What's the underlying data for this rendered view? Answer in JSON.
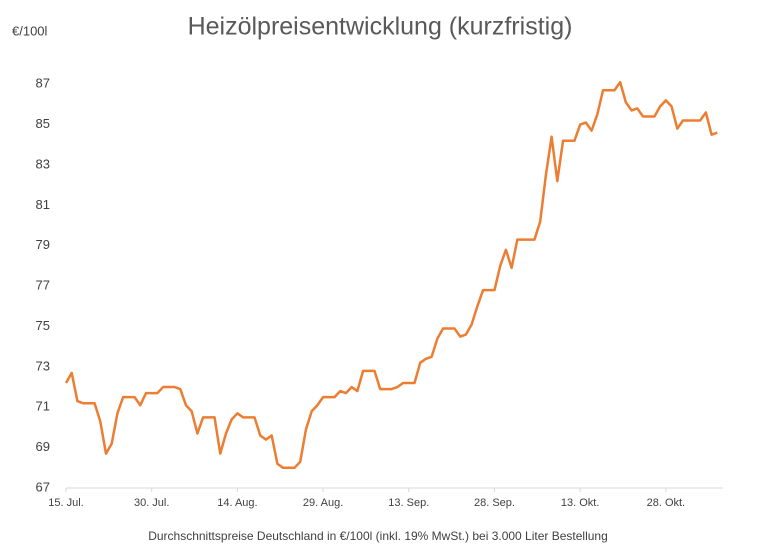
{
  "chart_data": {
    "type": "line",
    "title": "Heizölpreisentwicklung (kurzfristig)",
    "y_axis_label": "€/100l",
    "x_axis_label": "Durchschnittspreise Deutschland in €/100l (inkl. 19% MwSt.) bei 3.000 Liter Bestellung",
    "x": [
      0,
      1,
      2,
      3,
      5,
      6,
      7,
      8,
      9,
      10,
      12,
      13,
      14,
      16,
      17,
      19,
      20,
      21,
      22,
      23,
      24,
      26,
      27,
      28,
      29,
      30,
      31,
      33,
      34,
      35,
      36,
      37,
      38,
      40,
      41,
      42,
      43,
      44,
      45,
      47,
      48,
      49,
      50,
      51,
      52,
      54,
      55,
      57,
      58,
      59,
      61,
      62,
      63,
      64,
      65,
      66,
      68,
      69,
      70,
      71,
      72,
      73,
      75,
      76,
      77,
      78,
      79,
      82,
      83,
      84,
      85,
      86,
      87,
      89,
      90,
      91,
      92,
      93,
      94,
      96,
      97,
      98,
      99,
      100,
      101,
      103,
      104,
      105,
      106,
      107,
      108,
      111,
      112,
      113,
      114
    ],
    "series": [
      {
        "name": "Heizölpreis",
        "color": "#ed7d31",
        "values": [
          72.2,
          72.7,
          71.3,
          71.2,
          71.2,
          70.3,
          68.7,
          69.2,
          70.7,
          71.5,
          71.5,
          71.1,
          71.7,
          71.7,
          72.0,
          72.0,
          71.9,
          71.1,
          70.8,
          69.7,
          70.5,
          70.5,
          68.7,
          69.7,
          70.4,
          70.7,
          70.5,
          70.5,
          69.6,
          69.4,
          69.6,
          68.2,
          68.0,
          68.0,
          68.3,
          69.9,
          70.8,
          71.1,
          71.5,
          71.5,
          71.8,
          71.7,
          72.0,
          71.8,
          72.8,
          72.8,
          71.9,
          71.9,
          72.0,
          72.2,
          72.2,
          73.2,
          73.4,
          73.5,
          74.4,
          74.9,
          74.9,
          74.5,
          74.6,
          75.1,
          76.0,
          76.8,
          76.8,
          78.0,
          78.8,
          77.9,
          79.3,
          79.3,
          80.2,
          82.5,
          84.4,
          82.2,
          84.2,
          84.2,
          85.0,
          85.1,
          84.7,
          85.5,
          86.7,
          86.7,
          87.1,
          86.1,
          85.7,
          85.8,
          85.4,
          85.4,
          85.9,
          86.2,
          85.9,
          84.8,
          85.2,
          85.2,
          85.6,
          84.5,
          84.6
        ]
      }
    ],
    "xlim": [
      0,
      115
    ],
    "xticks": [
      {
        "value": 0,
        "label": "15. Jul."
      },
      {
        "value": 15,
        "label": "30. Jul."
      },
      {
        "value": 30,
        "label": "14. Aug."
      },
      {
        "value": 45,
        "label": "29. Aug."
      },
      {
        "value": 60,
        "label": "13. Sep."
      },
      {
        "value": 75,
        "label": "28. Sep."
      },
      {
        "value": 90,
        "label": "13. Okt."
      },
      {
        "value": 105,
        "label": "28. Okt."
      }
    ],
    "ylim": [
      67,
      88
    ],
    "yticks": [
      67,
      69,
      71,
      73,
      75,
      77,
      79,
      81,
      83,
      85,
      87
    ],
    "grid": false
  }
}
